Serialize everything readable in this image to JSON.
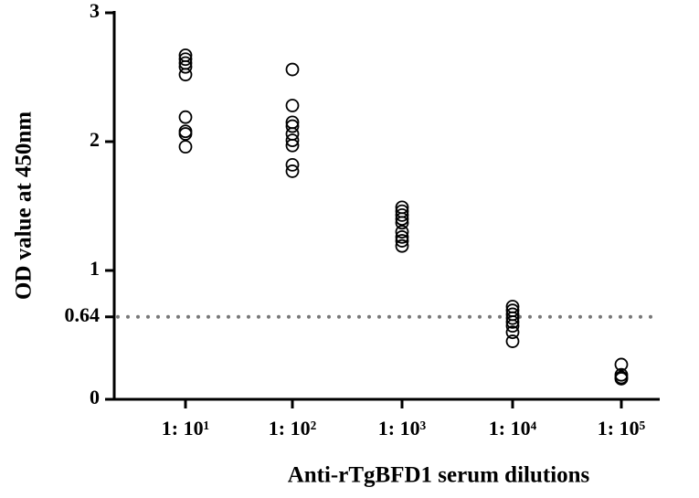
{
  "chart_data": {
    "type": "dot",
    "x_label": "Anti-rTgBFD1 serum dilutions",
    "y_label": "OD value at 450nm",
    "categories": [
      "1: 10¹",
      "1: 10²",
      "1: 10³",
      "1: 10⁴",
      "1: 10⁵"
    ],
    "values": [
      [
        2.67,
        2.64,
        2.61,
        2.58,
        2.52,
        2.19,
        2.08,
        2.06,
        1.96
      ],
      [
        2.56,
        2.28,
        2.15,
        2.12,
        2.06,
        2.01,
        1.97,
        1.82,
        1.77
      ],
      [
        1.49,
        1.46,
        1.43,
        1.4,
        1.37,
        1.3,
        1.26,
        1.23,
        1.19
      ],
      [
        0.72,
        0.69,
        0.66,
        0.63,
        0.6,
        0.57,
        0.52,
        0.45
      ],
      [
        0.27,
        0.19,
        0.17,
        0.16
      ]
    ],
    "color": "#000000",
    "ylim": [
      0,
      3
    ],
    "yticks": [
      0,
      0.64,
      1,
      2,
      3
    ],
    "reference_line": 0.64,
    "reference_color": "#777777"
  }
}
